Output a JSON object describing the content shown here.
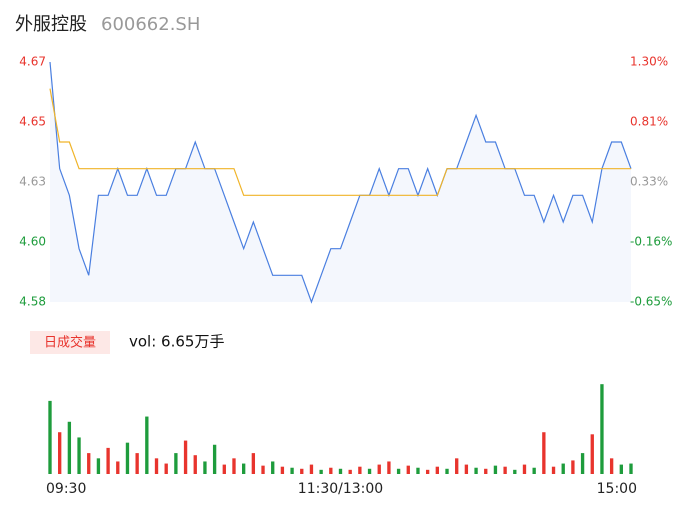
{
  "chart_data": [
    {
      "type": "line",
      "title": "外服控股",
      "subtitle": "600662.SH",
      "x": [
        0,
        4,
        8,
        12,
        16,
        20,
        24,
        28,
        32,
        36,
        40,
        44,
        48,
        52,
        56,
        60,
        64,
        68,
        72,
        76,
        80,
        84,
        88,
        92,
        96,
        100,
        104,
        108,
        112,
        116,
        120,
        124,
        128,
        132,
        136,
        140,
        144,
        148,
        152,
        156,
        160,
        164,
        168,
        172,
        176,
        180,
        184,
        188,
        192,
        196,
        200,
        204,
        208,
        212,
        216,
        220,
        224,
        228,
        232,
        236,
        240
      ],
      "xlim": [
        0,
        240
      ],
      "series": [
        {
          "color": "#4a7fe0",
          "values": [
            4.67,
            4.63,
            4.62,
            4.6,
            4.59,
            4.62,
            4.62,
            4.63,
            4.62,
            4.62,
            4.63,
            4.62,
            4.62,
            4.63,
            4.63,
            4.64,
            4.63,
            4.63,
            4.62,
            4.61,
            4.6,
            4.61,
            4.6,
            4.59,
            4.59,
            4.59,
            4.59,
            4.58,
            4.59,
            4.6,
            4.6,
            4.61,
            4.62,
            4.62,
            4.63,
            4.62,
            4.63,
            4.63,
            4.62,
            4.63,
            4.62,
            4.63,
            4.63,
            4.64,
            4.65,
            4.64,
            4.64,
            4.63,
            4.63,
            4.62,
            4.62,
            4.61,
            4.62,
            4.61,
            4.62,
            4.62,
            4.61,
            4.63,
            4.64,
            4.64,
            4.63
          ]
        },
        {
          "color": "#f0b429",
          "values": [
            4.66,
            4.64,
            4.64,
            4.63,
            4.63,
            4.63,
            4.63,
            4.63,
            4.63,
            4.63,
            4.63,
            4.63,
            4.63,
            4.63,
            4.63,
            4.63,
            4.63,
            4.63,
            4.63,
            4.63,
            4.62,
            4.62,
            4.62,
            4.62,
            4.62,
            4.62,
            4.62,
            4.62,
            4.62,
            4.62,
            4.62,
            4.62,
            4.62,
            4.62,
            4.62,
            4.62,
            4.62,
            4.62,
            4.62,
            4.62,
            4.62,
            4.63,
            4.63,
            4.63,
            4.63,
            4.63,
            4.63,
            4.63,
            4.63,
            4.63,
            4.63,
            4.63,
            4.63,
            4.63,
            4.63,
            4.63,
            4.63,
            4.63,
            4.63,
            4.63,
            4.63
          ]
        }
      ],
      "ylim": [
        4.58,
        4.67
      ],
      "yticks": [
        4.58,
        {
          "value": 4.6025,
          "label": "4.60"
        },
        {
          "value": 4.625,
          "label": "4.63"
        },
        {
          "value": 4.6475,
          "label": "4.65"
        },
        4.67
      ],
      "ytick_colors": [
        "#1e9c3c",
        "#1e9c3c",
        "#999999",
        "#e8342d",
        "#e8342d"
      ],
      "y2lim": [
        -0.65,
        1.3
      ],
      "y2ticks": [
        {
          "value": -0.65,
          "label": "-0.65%"
        },
        {
          "value": -0.1625,
          "label": "-0.16%"
        },
        {
          "value": 0.325,
          "label": "0.33%"
        },
        {
          "value": 0.8125,
          "label": "0.81%"
        },
        {
          "value": 1.3,
          "label": "1.30%"
        }
      ],
      "area_fill": "#f4f7fd"
    },
    {
      "type": "bar",
      "label": "日成交量",
      "annotation": "vol: 6.65万手",
      "x": [
        0,
        4,
        8,
        12,
        16,
        20,
        24,
        28,
        32,
        36,
        40,
        44,
        48,
        52,
        56,
        60,
        64,
        68,
        72,
        76,
        80,
        84,
        88,
        92,
        96,
        100,
        104,
        108,
        112,
        116,
        120,
        124,
        128,
        132,
        136,
        140,
        144,
        148,
        152,
        156,
        160,
        164,
        168,
        172,
        176,
        180,
        184,
        188,
        192,
        196,
        200,
        204,
        208,
        212,
        216,
        220,
        224,
        228,
        232,
        236,
        240
      ],
      "xlim": [
        0,
        240
      ],
      "values": [
        7000,
        4000,
        5000,
        3500,
        2000,
        1500,
        2500,
        1200,
        3000,
        2000,
        5500,
        1500,
        1000,
        2000,
        3200,
        1800,
        1200,
        2800,
        900,
        1500,
        1000,
        2000,
        800,
        1200,
        700,
        600,
        500,
        900,
        400,
        600,
        500,
        400,
        700,
        500,
        900,
        1200,
        500,
        800,
        600,
        400,
        700,
        500,
        1500,
        900,
        600,
        500,
        800,
        700,
        400,
        900,
        600,
        4000,
        700,
        1000,
        1300,
        2000,
        3800,
        8600,
        1500,
        900,
        1000
      ],
      "colors": [
        "#1e9c3c",
        "#e8342d",
        "#1e9c3c",
        "#1e9c3c",
        "#e8342d",
        "#1e9c3c",
        "#e8342d",
        "#e8342d",
        "#1e9c3c",
        "#e8342d",
        "#1e9c3c",
        "#e8342d",
        "#e8342d",
        "#1e9c3c",
        "#e8342d",
        "#e8342d",
        "#1e9c3c",
        "#1e9c3c",
        "#e8342d",
        "#e8342d",
        "#1e9c3c",
        "#e8342d",
        "#e8342d",
        "#1e9c3c",
        "#e8342d",
        "#1e9c3c",
        "#e8342d",
        "#e8342d",
        "#1e9c3c",
        "#e8342d",
        "#1e9c3c",
        "#e8342d",
        "#e8342d",
        "#1e9c3c",
        "#e8342d",
        "#e8342d",
        "#1e9c3c",
        "#e8342d",
        "#1e9c3c",
        "#e8342d",
        "#e8342d",
        "#1e9c3c",
        "#e8342d",
        "#e8342d",
        "#1e9c3c",
        "#e8342d",
        "#1e9c3c",
        "#e8342d",
        "#1e9c3c",
        "#e8342d",
        "#1e9c3c",
        "#e8342d",
        "#e8342d",
        "#1e9c3c",
        "#e8342d",
        "#1e9c3c",
        "#e8342d",
        "#1e9c3c",
        "#e8342d",
        "#1e9c3c",
        "#1e9c3c"
      ],
      "ylim": [
        0,
        9000
      ],
      "xticks": [
        {
          "value": 0,
          "label": "09:30"
        },
        {
          "value": 120,
          "label": "11:30/13:00"
        },
        {
          "value": 240,
          "label": "15:00"
        }
      ]
    }
  ]
}
